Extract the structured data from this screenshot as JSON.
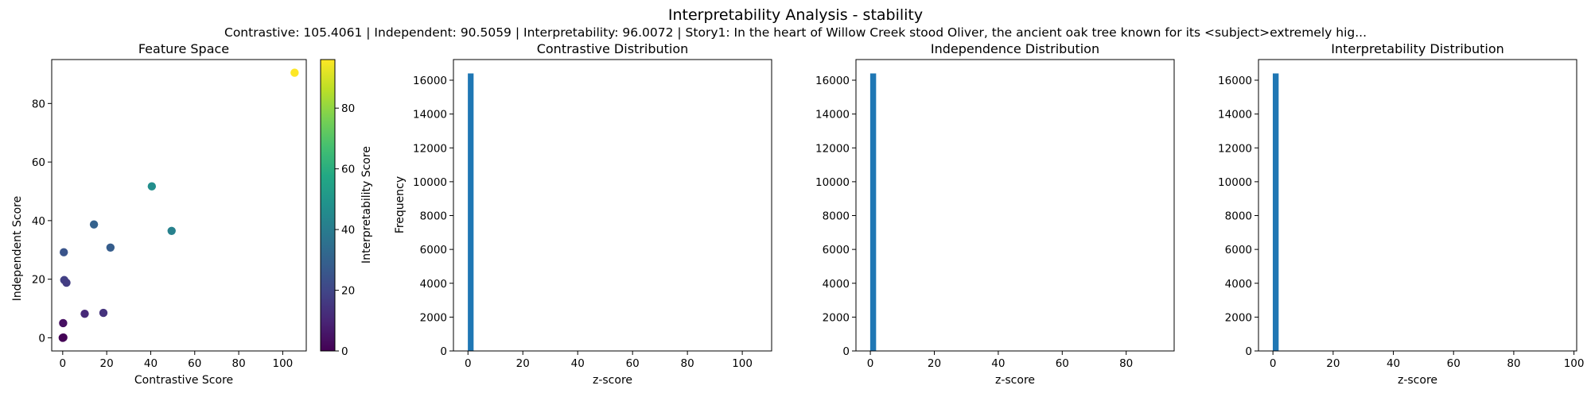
{
  "figure": {
    "title": "Interpretability Analysis - stability",
    "subtitle": "Contrastive: 105.4061 | Independent: 90.5059 | Interpretability: 96.0072 | Story1: In the heart of Willow Creek stood Oliver, the ancient oak tree known for its <subject>extremely hig..."
  },
  "colors": {
    "histogram_bar": "#1f77b4",
    "colormap": "viridis"
  },
  "chart_data": [
    {
      "type": "scatter",
      "title": "Feature Space",
      "xlabel": "Contrastive Score",
      "ylabel": "Independent Score",
      "xlim": [
        -5,
        110.7
      ],
      "ylim": [
        -4.5,
        95
      ],
      "xticks": [
        0,
        20,
        40,
        60,
        80,
        100
      ],
      "yticks": [
        0,
        20,
        40,
        60,
        80
      ],
      "grid": false,
      "points": [
        {
          "x": 105.4,
          "y": 90.5,
          "c": 96.0
        },
        {
          "x": 40.5,
          "y": 51.7,
          "c": 47
        },
        {
          "x": 49.5,
          "y": 36.5,
          "c": 42
        },
        {
          "x": 14.2,
          "y": 38.7,
          "c": 30
        },
        {
          "x": 21.7,
          "y": 30.8,
          "c": 28
        },
        {
          "x": 0.5,
          "y": 29.2,
          "c": 25
        },
        {
          "x": 0.7,
          "y": 19.7,
          "c": 18
        },
        {
          "x": 1.7,
          "y": 18.8,
          "c": 17
        },
        {
          "x": 18.5,
          "y": 8.5,
          "c": 14
        },
        {
          "x": 10.0,
          "y": 8.2,
          "c": 11
        },
        {
          "x": 0.2,
          "y": 5.0,
          "c": 4
        },
        {
          "x": 0.0,
          "y": 0.0,
          "c": 0
        },
        {
          "x": 0.3,
          "y": 0.1,
          "c": 0.5
        }
      ],
      "colorbar": {
        "label": "Interpretability Score",
        "range": [
          0,
          96.0072
        ],
        "ticks": [
          0,
          20,
          40,
          60,
          80
        ]
      }
    },
    {
      "type": "bar",
      "title": "Contrastive Distribution",
      "xlabel": "z-score",
      "ylabel": "Frequency",
      "xlim": [
        -5.3,
        110.7
      ],
      "ylim": [
        0,
        17220
      ],
      "xticks": [
        0,
        20,
        40,
        60,
        80,
        100
      ],
      "yticks": [
        0,
        2000,
        4000,
        6000,
        8000,
        10000,
        12000,
        14000,
        16000
      ],
      "bins": [
        {
          "x0": -0.05,
          "x1": 2.05,
          "count": 16400
        }
      ]
    },
    {
      "type": "bar",
      "title": "Independence Distribution",
      "xlabel": "z-score",
      "ylabel": "",
      "xlim": [
        -4.5,
        95
      ],
      "ylim": [
        0,
        17220
      ],
      "xticks": [
        0,
        20,
        40,
        60,
        80
      ],
      "yticks": [
        0,
        2000,
        4000,
        6000,
        8000,
        10000,
        12000,
        14000,
        16000
      ],
      "bins": [
        {
          "x0": -0.05,
          "x1": 1.8,
          "count": 16400
        }
      ]
    },
    {
      "type": "bar",
      "title": "Interpretability Distribution",
      "xlabel": "z-score",
      "ylabel": "",
      "xlim": [
        -4.8,
        100.9
      ],
      "ylim": [
        0,
        17220
      ],
      "xticks": [
        0,
        20,
        40,
        60,
        80,
        100
      ],
      "yticks": [
        0,
        2000,
        4000,
        6000,
        8000,
        10000,
        12000,
        14000,
        16000
      ],
      "bins": [
        {
          "x0": -0.05,
          "x1": 1.9,
          "count": 16400
        }
      ]
    }
  ]
}
